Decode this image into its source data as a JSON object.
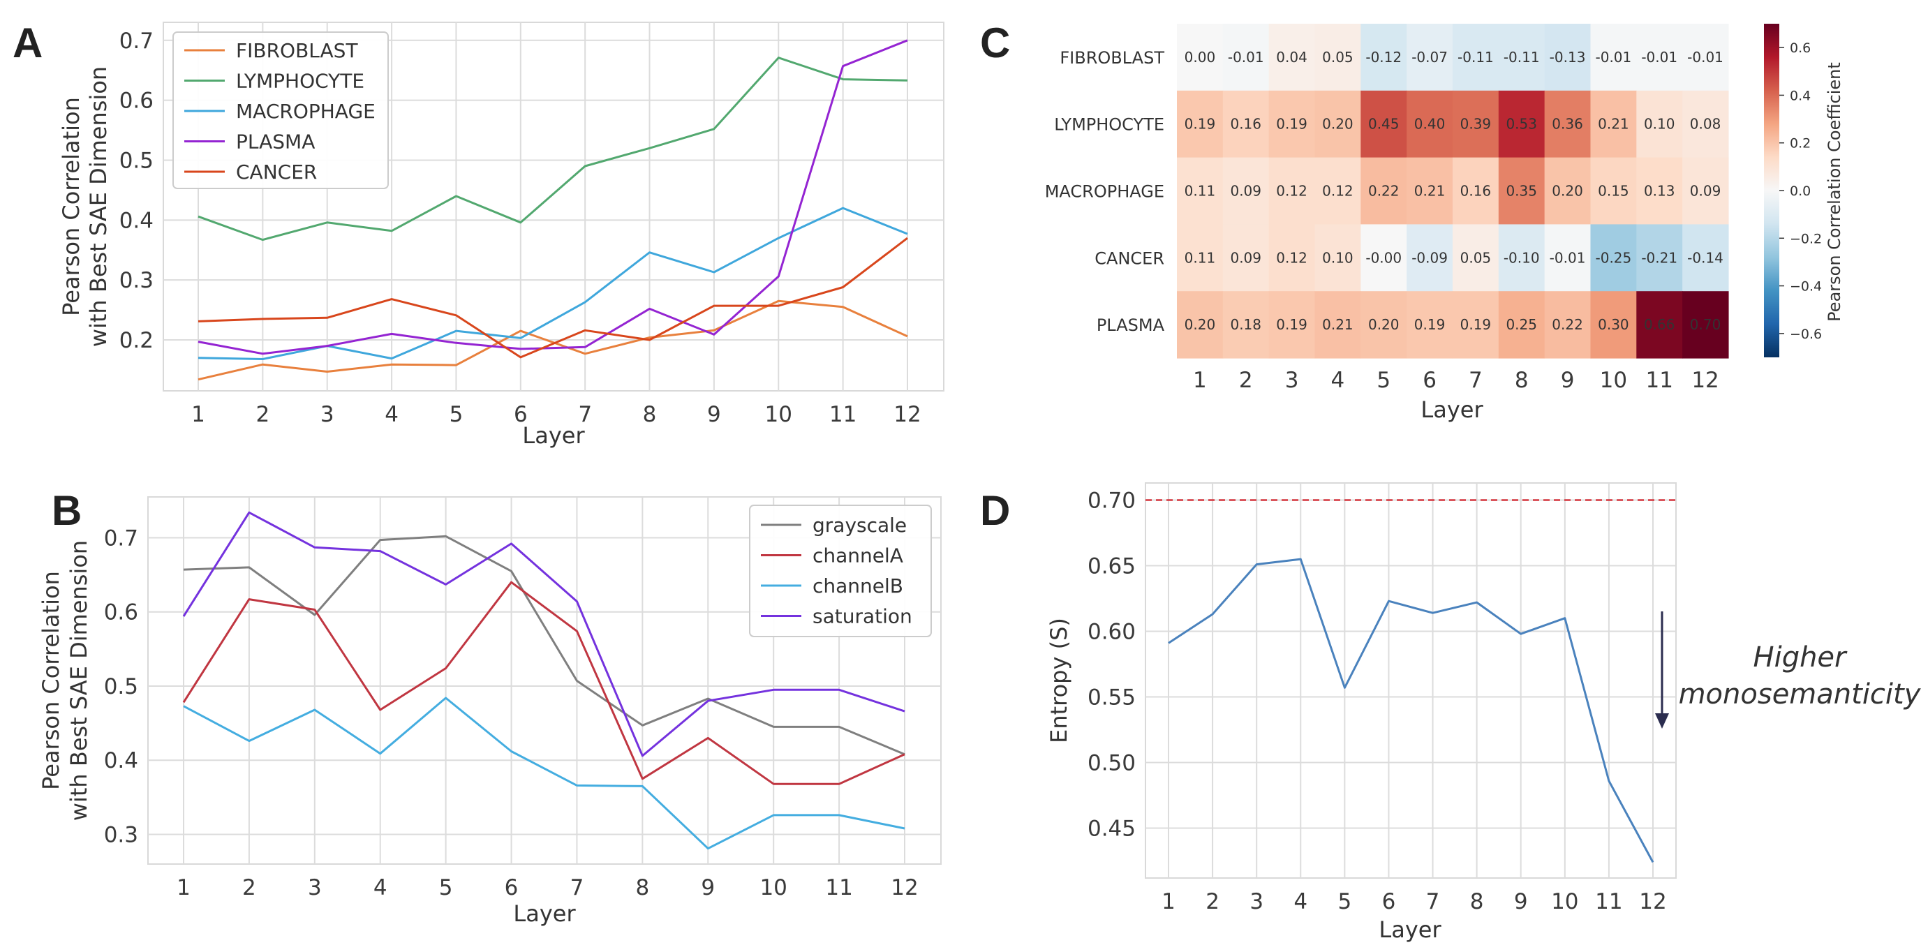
{
  "chart_data": [
    {
      "panel": "A",
      "type": "line",
      "xlabel": "Layer",
      "ylabel": "Pearson Correlation with Best SAE Dimension",
      "x": [
        1,
        2,
        3,
        4,
        5,
        6,
        7,
        8,
        9,
        10,
        11,
        12
      ],
      "yticks": [
        "0.2",
        "0.3",
        "0.4",
        "0.5",
        "0.6",
        "0.7"
      ],
      "ylim": [
        0.115,
        0.73
      ],
      "grid": true,
      "legend_position": "top-left",
      "series": [
        {
          "name": "FIBROBLAST",
          "color": "#e8803d",
          "values": [
            0.134,
            0.159,
            0.147,
            0.159,
            0.158,
            0.215,
            0.177,
            0.204,
            0.216,
            0.265,
            0.255,
            0.206
          ]
        },
        {
          "name": "LYMPHOCYTE",
          "color": "#52a86f",
          "values": [
            0.406,
            0.367,
            0.396,
            0.382,
            0.44,
            0.396,
            0.49,
            0.52,
            0.552,
            0.671,
            0.635,
            0.633
          ]
        },
        {
          "name": "MACROPHAGE",
          "color": "#3fa7dc",
          "values": [
            0.17,
            0.168,
            0.19,
            0.169,
            0.215,
            0.203,
            0.263,
            0.346,
            0.313,
            0.37,
            0.42,
            0.377
          ]
        },
        {
          "name": "PLASMA",
          "color": "#9424d2",
          "values": [
            0.197,
            0.177,
            0.19,
            0.21,
            0.195,
            0.185,
            0.188,
            0.252,
            0.209,
            0.306,
            0.657,
            0.7
          ]
        },
        {
          "name": "CANCER",
          "color": "#d8461c",
          "values": [
            0.231,
            0.235,
            0.237,
            0.268,
            0.241,
            0.171,
            0.216,
            0.2,
            0.257,
            0.257,
            0.288,
            0.37
          ]
        }
      ]
    },
    {
      "panel": "B",
      "type": "line",
      "xlabel": "Layer",
      "ylabel": "Pearson Correlation with Best SAE Dimension",
      "x": [
        1,
        2,
        3,
        4,
        5,
        6,
        7,
        8,
        9,
        10,
        11,
        12
      ],
      "yticks": [
        "0.3",
        "0.4",
        "0.5",
        "0.6",
        "0.7"
      ],
      "ylim": [
        0.26,
        0.755
      ],
      "grid": true,
      "legend_position": "top-right",
      "series": [
        {
          "name": "grayscale",
          "color": "#7f7f7f",
          "values": [
            0.657,
            0.66,
            0.596,
            0.697,
            0.702,
            0.655,
            0.507,
            0.447,
            0.483,
            0.445,
            0.445,
            0.408
          ]
        },
        {
          "name": "channelA",
          "color": "#c03641",
          "values": [
            0.478,
            0.617,
            0.603,
            0.468,
            0.524,
            0.64,
            0.574,
            0.375,
            0.43,
            0.368,
            0.368,
            0.408
          ]
        },
        {
          "name": "channelB",
          "color": "#44ade0",
          "values": [
            0.473,
            0.426,
            0.468,
            0.409,
            0.484,
            0.412,
            0.366,
            0.365,
            0.281,
            0.326,
            0.326,
            0.308
          ]
        },
        {
          "name": "saturation",
          "color": "#7432de",
          "values": [
            0.594,
            0.734,
            0.687,
            0.682,
            0.637,
            0.692,
            0.614,
            0.406,
            0.48,
            0.495,
            0.495,
            0.466
          ]
        }
      ]
    },
    {
      "panel": "C",
      "type": "heatmap",
      "xlabel": "Layer",
      "colorbar_label": "Pearson Correlation Coefficient",
      "colorbar_range": [
        -0.7,
        0.7
      ],
      "colorbar_ticks": [
        "0.6",
        "0.4",
        "0.2",
        "0.0",
        "−0.2",
        "−0.4",
        "−0.6"
      ],
      "colorbar_tick_values": [
        0.6,
        0.4,
        0.2,
        0,
        -0.2,
        -0.4,
        -0.6
      ],
      "columns": [
        "1",
        "2",
        "3",
        "4",
        "5",
        "6",
        "7",
        "8",
        "9",
        "10",
        "11",
        "12"
      ],
      "rows": [
        {
          "name": "FIBROBLAST",
          "values": [
            0.0,
            -0.01,
            0.04,
            0.05,
            -0.12,
            -0.07,
            -0.11,
            -0.11,
            -0.13,
            -0.01,
            -0.01,
            -0.01
          ],
          "labels": [
            "0.00",
            "-0.01",
            "0.04",
            "0.05",
            "-0.12",
            "-0.07",
            "-0.11",
            "-0.11",
            "-0.13",
            "-0.01",
            "-0.01",
            "-0.01"
          ]
        },
        {
          "name": "LYMPHOCYTE",
          "values": [
            0.19,
            0.16,
            0.19,
            0.2,
            0.45,
            0.4,
            0.39,
            0.53,
            0.36,
            0.21,
            0.1,
            0.08
          ],
          "labels": [
            "0.19",
            "0.16",
            "0.19",
            "0.20",
            "0.45",
            "0.40",
            "0.39",
            "0.53",
            "0.36",
            "0.21",
            "0.10",
            "0.08"
          ]
        },
        {
          "name": "MACROPHAGE",
          "values": [
            0.11,
            0.09,
            0.12,
            0.12,
            0.22,
            0.21,
            0.16,
            0.35,
            0.2,
            0.15,
            0.13,
            0.09
          ],
          "labels": [
            "0.11",
            "0.09",
            "0.12",
            "0.12",
            "0.22",
            "0.21",
            "0.16",
            "0.35",
            "0.20",
            "0.15",
            "0.13",
            "0.09"
          ]
        },
        {
          "name": "CANCER",
          "values": [
            0.11,
            0.09,
            0.12,
            0.1,
            -0.0,
            -0.09,
            0.05,
            -0.1,
            -0.01,
            -0.25,
            -0.21,
            -0.14
          ],
          "labels": [
            "0.11",
            "0.09",
            "0.12",
            "0.10",
            "-0.00",
            "-0.09",
            "0.05",
            "-0.10",
            "-0.01",
            "-0.25",
            "-0.21",
            "-0.14"
          ]
        },
        {
          "name": "PLASMA",
          "values": [
            0.2,
            0.18,
            0.19,
            0.21,
            0.2,
            0.19,
            0.19,
            0.25,
            0.22,
            0.3,
            0.66,
            0.7
          ],
          "labels": [
            "0.20",
            "0.18",
            "0.19",
            "0.21",
            "0.20",
            "0.19",
            "0.19",
            "0.25",
            "0.22",
            "0.30",
            "0.66",
            "0.70"
          ]
        }
      ]
    },
    {
      "panel": "D",
      "type": "line",
      "xlabel": "Layer",
      "ylabel": "Entropy (S)",
      "x": [
        1,
        2,
        3,
        4,
        5,
        6,
        7,
        8,
        9,
        10,
        11,
        12
      ],
      "yticks": [
        "0.45",
        "0.50",
        "0.55",
        "0.60",
        "0.65",
        "0.70"
      ],
      "ylim": [
        0.412,
        0.713
      ],
      "grid": true,
      "reference_line": {
        "y": 0.7,
        "color": "#d4343c",
        "style": "dashed"
      },
      "series": [
        {
          "name": "Entropy",
          "color": "#4a82bd",
          "values": [
            0.591,
            0.613,
            0.651,
            0.655,
            0.557,
            0.623,
            0.614,
            0.622,
            0.598,
            0.61,
            0.486,
            0.424
          ]
        }
      ],
      "annotation": {
        "text_line1": "Higher",
        "text_line2": "monosemanticity",
        "arrow": "down"
      }
    }
  ],
  "panels": {
    "a": "A",
    "b": "B",
    "c": "C",
    "d": "D"
  }
}
